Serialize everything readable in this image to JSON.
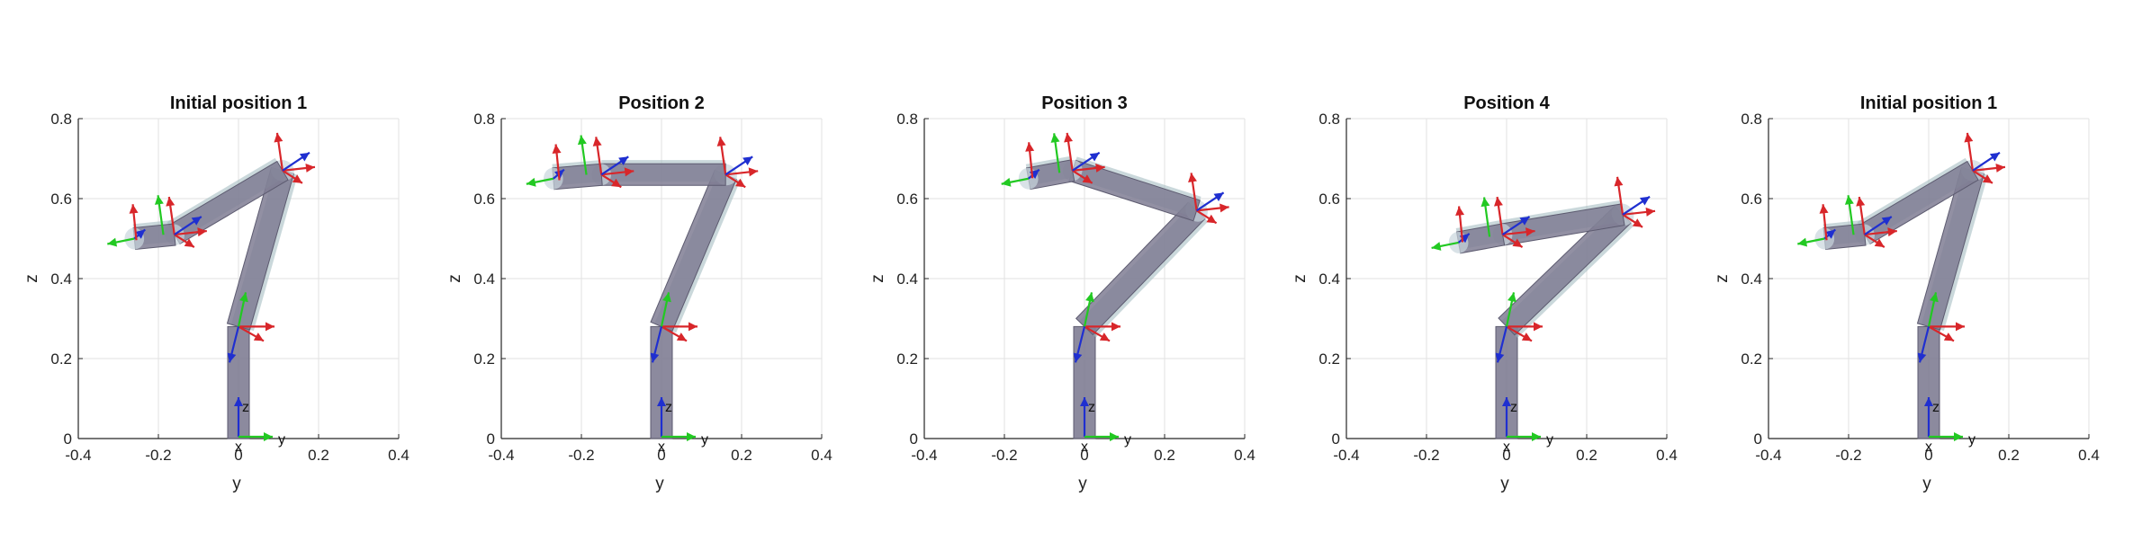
{
  "chart_data": [
    {
      "type": "robot-pose-plot",
      "title": "Initial position 1",
      "xlabel": "y",
      "ylabel": "z",
      "xlim": [
        -0.4,
        0.4
      ],
      "ylim": [
        0,
        0.8
      ],
      "xticks": [
        "-0.4",
        "-0.2",
        "0",
        "0.2",
        "0.4"
      ],
      "yticks": [
        "0",
        "0.2",
        "0.4",
        "0.6",
        "0.8"
      ],
      "grid": true,
      "base_frame_labels": [
        "z",
        "x",
        "y"
      ],
      "joints": [
        [
          0,
          0.28
        ],
        [
          0.11,
          0.67
        ],
        [
          -0.16,
          0.51
        ],
        [
          -0.26,
          0.5
        ]
      ]
    },
    {
      "type": "robot-pose-plot",
      "title": "Position 2",
      "xlabel": "y",
      "ylabel": "z",
      "xlim": [
        -0.4,
        0.4
      ],
      "ylim": [
        0,
        0.8
      ],
      "xticks": [
        "-0.4",
        "-0.2",
        "0",
        "0.2",
        "0.4"
      ],
      "yticks": [
        "0",
        "0.2",
        "0.4",
        "0.6",
        "0.8"
      ],
      "grid": true,
      "base_frame_labels": [
        "z",
        "x",
        "y"
      ],
      "joints": [
        [
          0,
          0.28
        ],
        [
          0.16,
          0.66
        ],
        [
          -0.15,
          0.66
        ],
        [
          -0.27,
          0.65
        ]
      ]
    },
    {
      "type": "robot-pose-plot",
      "title": "Position 3",
      "xlabel": "y",
      "ylabel": "z",
      "xlim": [
        -0.4,
        0.4
      ],
      "ylim": [
        0,
        0.8
      ],
      "xticks": [
        "-0.4",
        "-0.2",
        "0",
        "0.2",
        "0.4"
      ],
      "yticks": [
        "0",
        "0.2",
        "0.4",
        "0.6",
        "0.8"
      ],
      "grid": true,
      "base_frame_labels": [
        "z",
        "x",
        "y"
      ],
      "joints": [
        [
          0,
          0.28
        ],
        [
          0.28,
          0.57
        ],
        [
          -0.03,
          0.67
        ],
        [
          -0.14,
          0.65
        ]
      ]
    },
    {
      "type": "robot-pose-plot",
      "title": "Position 4",
      "xlabel": "y",
      "ylabel": "z",
      "xlim": [
        -0.4,
        0.4
      ],
      "ylim": [
        0,
        0.8
      ],
      "xticks": [
        "-0.4",
        "-0.2",
        "0",
        "0.2",
        "0.4"
      ],
      "yticks": [
        "0",
        "0.2",
        "0.4",
        "0.6",
        "0.8"
      ],
      "grid": true,
      "base_frame_labels": [
        "z",
        "x",
        "y"
      ],
      "joints": [
        [
          0,
          0.28
        ],
        [
          0.29,
          0.56
        ],
        [
          -0.01,
          0.51
        ],
        [
          -0.12,
          0.49
        ]
      ]
    },
    {
      "type": "robot-pose-plot",
      "title": "Initial position 1",
      "xlabel": "y",
      "ylabel": "z",
      "xlim": [
        -0.4,
        0.4
      ],
      "ylim": [
        0,
        0.8
      ],
      "xticks": [
        "-0.4",
        "-0.2",
        "0",
        "0.2",
        "0.4"
      ],
      "yticks": [
        "0",
        "0.2",
        "0.4",
        "0.6",
        "0.8"
      ],
      "grid": true,
      "base_frame_labels": [
        "z",
        "x",
        "y"
      ],
      "joints": [
        [
          0,
          0.28
        ],
        [
          0.11,
          0.67
        ],
        [
          -0.16,
          0.51
        ],
        [
          -0.26,
          0.5
        ]
      ]
    }
  ],
  "colors": {
    "link_fill": "#7f7d93",
    "link_edge": "#5d5b70",
    "link_shade": "#9fb8bd",
    "axis_x": "#d8262a",
    "axis_y": "#22c922",
    "axis_z": "#1f2fd0",
    "grid": "#e2e2e2",
    "axes": "#262626"
  }
}
